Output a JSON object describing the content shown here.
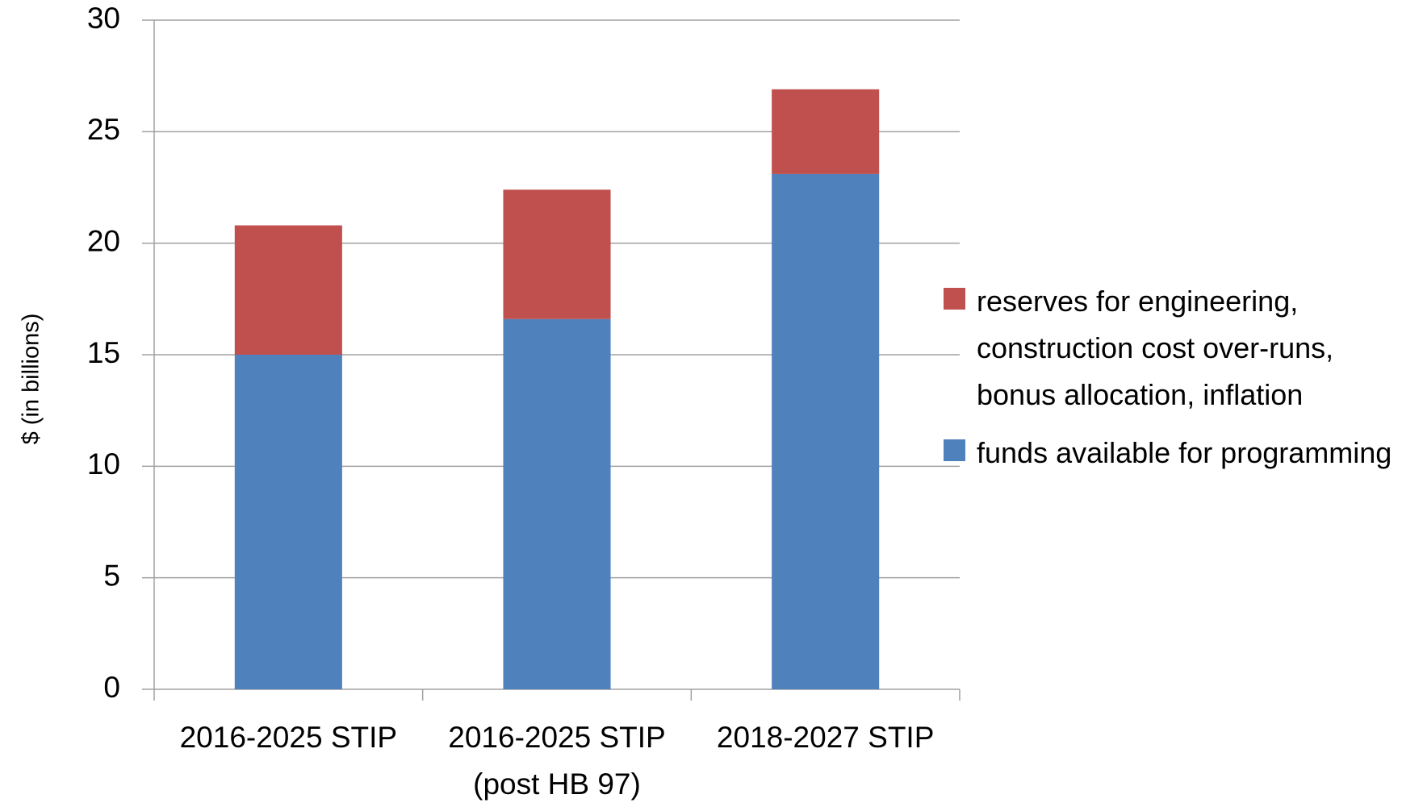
{
  "chart_data": {
    "type": "stacked_bar",
    "categories": [
      "2016-2025 STIP",
      "2016-2025 STIP\n(post HB 97)",
      "2018-2027 STIP"
    ],
    "series": [
      {
        "name": "funds available for programming",
        "color": "#4f81bd",
        "values": [
          15.0,
          16.6,
          23.1
        ]
      },
      {
        "name": "reserves for engineering, construction cost over-runs, bonus allocation, inflation",
        "color": "#c0504d",
        "values": [
          5.8,
          5.8,
          3.8
        ]
      }
    ],
    "ylabel": "$ (in billions)",
    "ylim": [
      0,
      30
    ],
    "yticks": [
      0,
      5,
      10,
      15,
      20,
      25,
      30
    ],
    "grid": true,
    "legend": "right"
  }
}
